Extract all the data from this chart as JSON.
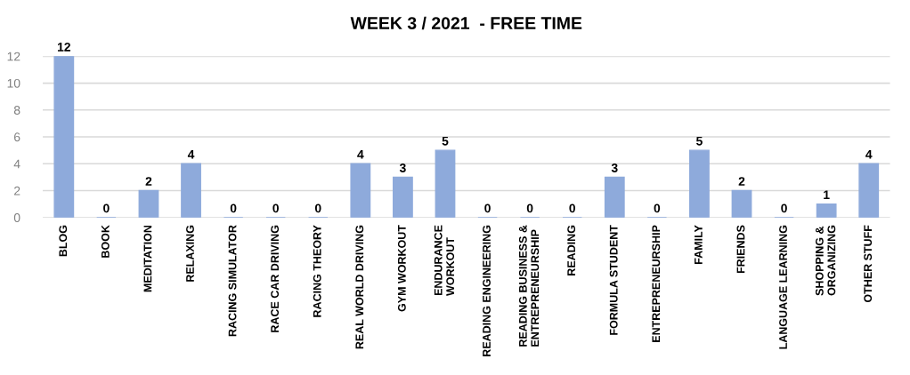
{
  "chart_data": {
    "type": "bar",
    "title": "WEEK 3 / 2021  - FREE TIME",
    "categories": [
      "BLOG",
      "BOOK",
      "MEDITATION",
      "RELAXING",
      "RACING SIMULATOR",
      "RACE CAR DRIVING",
      "RACING THEORY",
      "REAL WORLD DRIVING",
      "GYM WORKOUT",
      "ENDURANCE\nWORKOUT",
      "READING ENGINEERING",
      "READING BUSINESS &\nENTREPRENEURSHIP",
      "READING",
      "FORMULA STUDENT",
      "ENTREPRENEURSHIP",
      "FAMILY",
      "FRIENDS",
      "LANGUAGE LEARNING",
      "SHOPPING &\nORGANIZING",
      "OTHER STUFF"
    ],
    "values": [
      12,
      0,
      2,
      4,
      0,
      0,
      0,
      4,
      3,
      5,
      0,
      0,
      0,
      3,
      0,
      5,
      2,
      0,
      1,
      4
    ],
    "color": "#8eaadb",
    "ylim": [
      0,
      12
    ],
    "yticks": [
      0,
      2,
      4,
      6,
      8,
      10,
      12
    ],
    "grid": "y",
    "data_labels": true
  }
}
